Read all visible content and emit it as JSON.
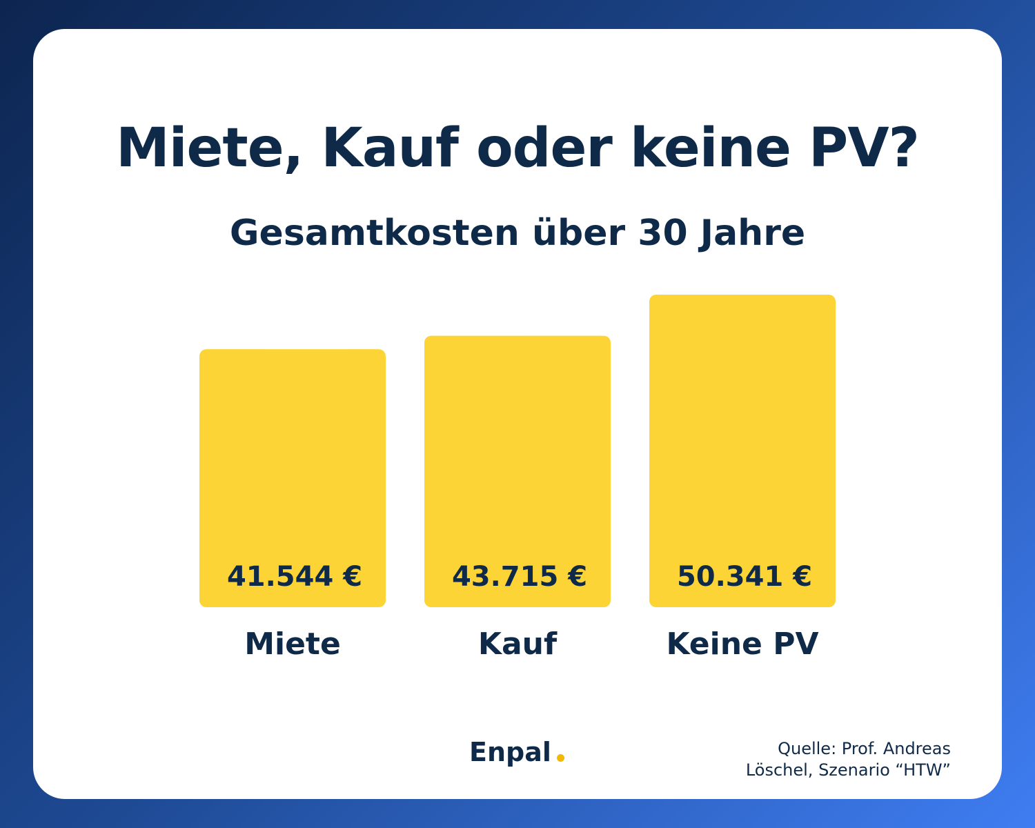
{
  "header": {
    "title": "Miete, Kauf oder keine PV?",
    "subtitle": "Gesamtkosten über 30 Jahre"
  },
  "colors": {
    "bar": "#FDD435",
    "text": "#0F2A48",
    "accent_dot": "#F5B800"
  },
  "chart_data": {
    "type": "bar",
    "title": "Miete, Kauf oder keine PV?",
    "subtitle": "Gesamtkosten über 30 Jahre",
    "categories": [
      "Miete",
      "Kauf",
      "Keine PV"
    ],
    "values": [
      41544,
      43715,
      50341
    ],
    "value_labels": [
      "41.544 €",
      "43.715 €",
      "50.341 €"
    ],
    "unit": "€",
    "grid": false,
    "ylim": [
      0,
      50341
    ]
  },
  "footer": {
    "logo_text": "Enpal",
    "source_line1": "Quelle: Prof. Andreas",
    "source_line2": "Löschel, Szenario “HTW”"
  }
}
